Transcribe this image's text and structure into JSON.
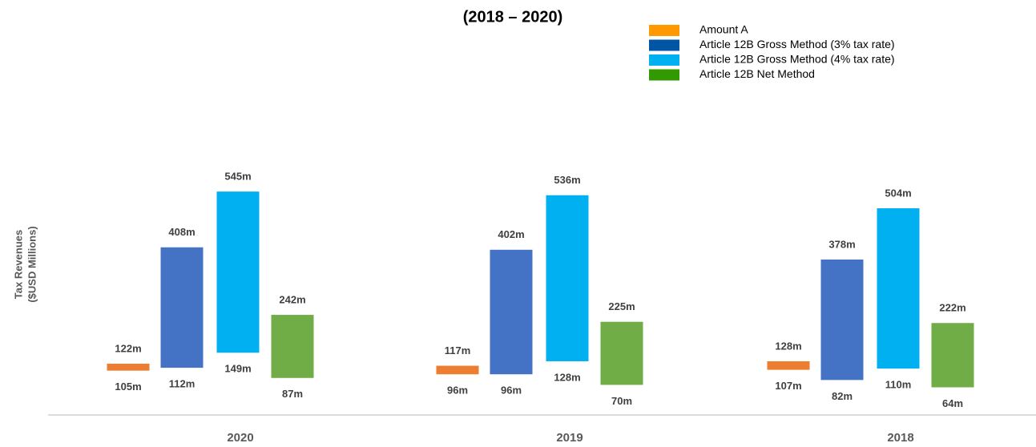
{
  "chart_data": {
    "type": "floating-bar",
    "title": "(2018 – 2020)",
    "ylabel": [
      "Tax Revenues",
      "($USD Millions)"
    ],
    "categories": [
      "2020",
      "2019",
      "2018"
    ],
    "series": [
      {
        "name": "Amount A",
        "color": "#ed7d31",
        "legend_color": "#ff9900",
        "low": [
          105,
          96,
          107
        ],
        "high": [
          122,
          117,
          128
        ],
        "low_labels": [
          "105m",
          "96m",
          "107m"
        ],
        "high_labels": [
          "122m",
          "117m",
          "128m"
        ]
      },
      {
        "name": "Article 12B Gross Method (3% tax rate)",
        "color": "#4472c4",
        "legend_color": "#0055a5",
        "low": [
          112,
          96,
          82
        ],
        "high": [
          408,
          402,
          378
        ],
        "low_labels": [
          "112m",
          "96m",
          "82m"
        ],
        "high_labels": [
          "408m",
          "402m",
          "378m"
        ]
      },
      {
        "name": "Article 12B Gross Method (4% tax rate)",
        "color": "#00b0f0",
        "legend_color": "#00b0f0",
        "low": [
          149,
          128,
          110
        ],
        "high": [
          545,
          536,
          504
        ],
        "low_labels": [
          "149m",
          "128m",
          "110m"
        ],
        "high_labels": [
          "545m",
          "536m",
          "504m"
        ]
      },
      {
        "name": "Article 12B Net Method",
        "color": "#70ad47",
        "legend_color": "#339900",
        "low": [
          87,
          70,
          64
        ],
        "high": [
          242,
          225,
          222
        ],
        "low_labels": [
          "87m",
          "70m",
          "64m"
        ],
        "high_labels": [
          "242m",
          "225m",
          "222m"
        ]
      }
    ]
  }
}
